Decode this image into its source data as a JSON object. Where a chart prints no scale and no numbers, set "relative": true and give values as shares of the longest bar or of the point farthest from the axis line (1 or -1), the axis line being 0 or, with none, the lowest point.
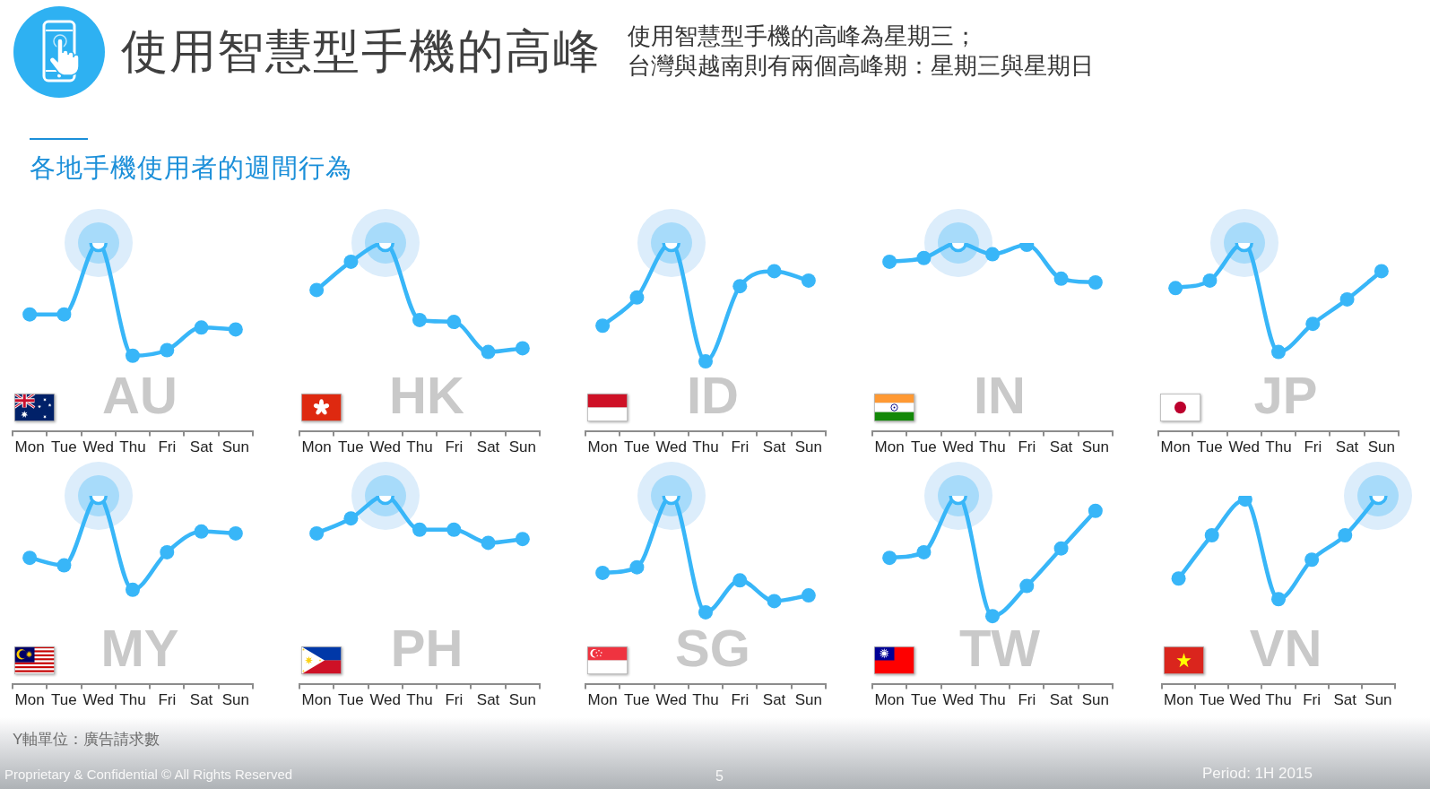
{
  "chart_data": [
    {
      "type": "other",
      "title": "使用智慧型手機的高峰",
      "subtitle": "使用智慧型手機的高峰為星期三；台灣與越南則有兩個高峰期：星期三與星期日",
      "annotations": [
        "各地手機使用者的週間行為"
      ]
    },
    {
      "type": "line",
      "title": "AU",
      "categories": [
        "Mon",
        "Tue",
        "Wed",
        "Thu",
        "Fri",
        "Sat",
        "Sun"
      ],
      "relative": true,
      "marker": "circle",
      "series": [
        {
          "color": "#38b6f8",
          "values": [
            0.62,
            0.62,
            1,
            0.4,
            0.43,
            0.55,
            0.54
          ]
        }
      ]
    },
    {
      "type": "line",
      "title": "HK",
      "categories": [
        "Mon",
        "Tue",
        "Wed",
        "Thu",
        "Fri",
        "Sat",
        "Sun"
      ],
      "relative": true,
      "marker": "circle",
      "series": [
        {
          "color": "#38b6f8",
          "values": [
            0.75,
            0.9,
            1,
            0.59,
            0.58,
            0.42,
            0.44
          ]
        }
      ]
    },
    {
      "type": "line",
      "title": "ID",
      "categories": [
        "Mon",
        "Tue",
        "Wed",
        "Thu",
        "Fri",
        "Sat",
        "Sun"
      ],
      "relative": true,
      "marker": "circle",
      "series": [
        {
          "color": "#38b6f8",
          "values": [
            0.56,
            0.71,
            1,
            0.37,
            0.77,
            0.85,
            0.8
          ]
        }
      ]
    },
    {
      "type": "line",
      "title": "IN",
      "categories": [
        "Mon",
        "Tue",
        "Wed",
        "Thu",
        "Fri",
        "Sat",
        "Sun"
      ],
      "relative": true,
      "marker": "circle",
      "series": [
        {
          "color": "#38b6f8",
          "values": [
            0.9,
            0.92,
            1,
            0.94,
            0.99,
            0.81,
            0.79
          ]
        }
      ]
    },
    {
      "type": "line",
      "title": "JP",
      "categories": [
        "Mon",
        "Tue",
        "Wed",
        "Thu",
        "Fri",
        "Sat",
        "Sun"
      ],
      "relative": true,
      "marker": "circle",
      "series": [
        {
          "color": "#38b6f8",
          "values": [
            0.76,
            0.8,
            1,
            0.42,
            0.57,
            0.7,
            0.85
          ]
        }
      ]
    },
    {
      "type": "line",
      "title": "MY",
      "categories": [
        "Mon",
        "Tue",
        "Wed",
        "Thu",
        "Fri",
        "Sat",
        "Sun"
      ],
      "relative": true,
      "marker": "circle",
      "series": [
        {
          "color": "#38b6f8",
          "values": [
            0.67,
            0.63,
            1,
            0.5,
            0.7,
            0.81,
            0.8
          ]
        }
      ]
    },
    {
      "type": "line",
      "title": "PH",
      "categories": [
        "Mon",
        "Tue",
        "Wed",
        "Thu",
        "Fri",
        "Sat",
        "Sun"
      ],
      "relative": true,
      "marker": "circle",
      "series": [
        {
          "color": "#38b6f8",
          "values": [
            0.8,
            0.88,
            1,
            0.82,
            0.82,
            0.75,
            0.77
          ]
        }
      ]
    },
    {
      "type": "line",
      "title": "SG",
      "categories": [
        "Mon",
        "Tue",
        "Wed",
        "Thu",
        "Fri",
        "Sat",
        "Sun"
      ],
      "relative": true,
      "marker": "circle",
      "series": [
        {
          "color": "#38b6f8",
          "values": [
            0.59,
            0.62,
            1,
            0.38,
            0.55,
            0.44,
            0.47
          ]
        }
      ]
    },
    {
      "type": "line",
      "title": "TW",
      "categories": [
        "Mon",
        "Tue",
        "Wed",
        "Thu",
        "Fri",
        "Sat",
        "Sun"
      ],
      "relative": true,
      "marker": "circle",
      "series": [
        {
          "color": "#38b6f8",
          "values": [
            0.67,
            0.7,
            1,
            0.36,
            0.52,
            0.72,
            0.92
          ]
        }
      ]
    },
    {
      "type": "line",
      "title": "VN",
      "categories": [
        "Mon",
        "Tue",
        "Wed",
        "Thu",
        "Fri",
        "Sat",
        "Sun"
      ],
      "relative": true,
      "marker": "circle",
      "series": [
        {
          "color": "#38b6f8",
          "values": [
            0.56,
            0.79,
            0.98,
            0.45,
            0.66,
            0.79,
            1
          ]
        }
      ]
    },
    {
      "type": "other",
      "annotations": [
        "Y軸單位：廣告請求數",
        "Proprietary & Confidential © All Rights Reserved",
        "5",
        "Period: 1H 2015"
      ]
    }
  ]
}
